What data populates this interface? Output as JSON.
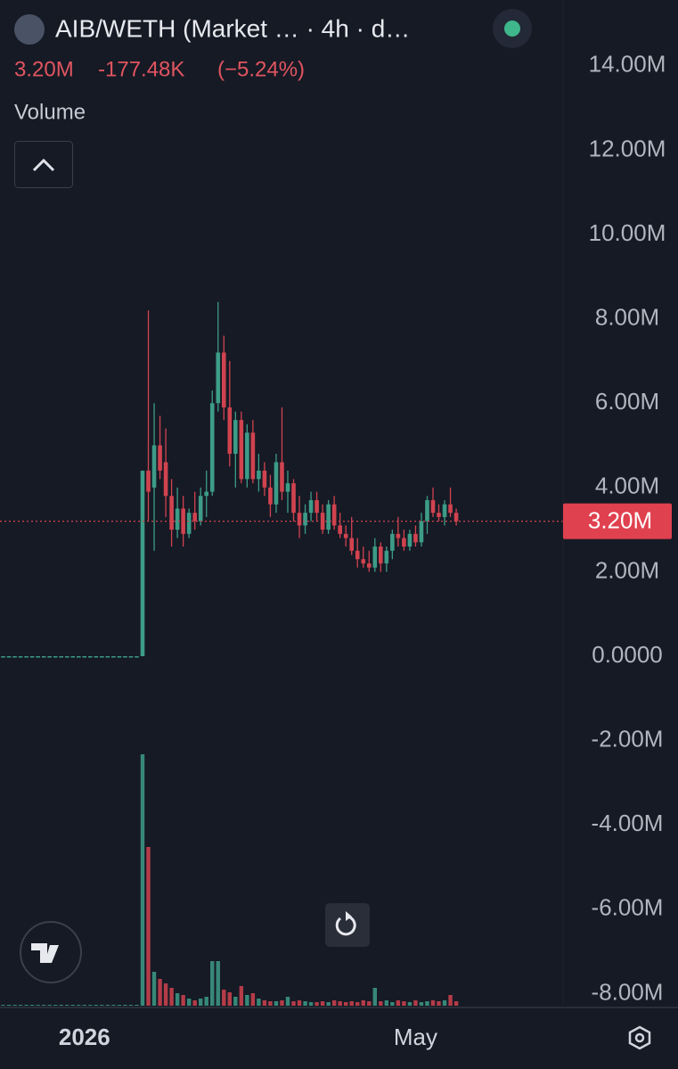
{
  "chart_data": {
    "type": "candlestick",
    "title": "AIB/WETH (Market … · 4h · d…",
    "price_label": "3.20M",
    "change": "-177.48K",
    "change_pct": "(−5.24%)",
    "indicator_label": "Volume",
    "up_color": "#3d9c87",
    "down_color": "#d0434f",
    "categories": [
      null,
      null,
      null,
      null,
      null,
      null,
      null,
      null,
      null,
      null,
      null,
      null,
      null,
      null,
      null,
      "2026",
      null,
      null,
      null,
      null,
      null,
      null,
      null,
      null,
      null,
      null,
      null,
      null,
      null,
      null,
      null,
      null,
      null,
      null,
      null,
      null,
      null,
      null,
      null,
      null,
      null,
      null,
      null,
      null,
      null,
      null,
      null,
      null,
      null,
      null,
      null,
      null,
      null,
      null,
      null,
      null,
      null,
      null,
      null,
      null,
      null,
      null,
      null,
      null,
      null,
      null,
      null,
      null,
      null,
      null,
      null,
      null,
      "May",
      null,
      null,
      null,
      null,
      null,
      null,
      null
    ],
    "open": [
      0,
      0,
      0,
      0,
      0,
      0,
      0,
      0,
      0,
      0,
      0,
      0,
      0,
      0,
      0,
      0,
      0,
      0,
      0,
      0,
      0,
      0,
      0,
      0,
      0,
      0,
      4.4,
      4.0,
      5.0,
      4.6,
      3.8,
      3.0,
      3.5,
      2.9,
      3.4,
      3.2,
      3.8,
      3.9,
      6.0,
      7.2,
      5.9,
      4.8,
      5.6,
      4.2,
      5.3,
      4.2,
      4.4,
      4.0,
      3.6,
      4.6,
      3.9,
      4.1,
      3.4,
      3.1,
      3.4,
      3.7,
      3.4,
      3.0,
      3.6,
      3.1,
      2.9,
      2.8,
      2.5,
      2.3,
      2.2,
      2.1,
      2.6,
      2.2,
      2.5,
      2.9,
      2.8,
      2.6,
      2.9,
      2.7,
      3.2,
      3.7,
      3.4,
      3.3,
      3.6,
      3.4
    ],
    "high": [
      0,
      0,
      0,
      0,
      0,
      0,
      0,
      0,
      0,
      0,
      0,
      0,
      0,
      0,
      0,
      0,
      0,
      0,
      0,
      0,
      0,
      0,
      0,
      0,
      0,
      4.4,
      8.2,
      6.0,
      5.7,
      5.4,
      4.2,
      4.0,
      3.8,
      3.5,
      3.9,
      4.0,
      4.4,
      6.3,
      8.4,
      7.6,
      7.0,
      5.8,
      5.8,
      5.5,
      5.6,
      4.8,
      4.6,
      4.3,
      4.8,
      5.9,
      4.4,
      4.2,
      3.8,
      3.6,
      3.9,
      3.9,
      3.6,
      3.7,
      3.8,
      3.4,
      3.1,
      3.3,
      2.8,
      2.6,
      2.5,
      2.8,
      2.7,
      2.6,
      3.0,
      3.3,
      3.0,
      3.0,
      3.1,
      3.4,
      3.8,
      4.0,
      3.6,
      3.7,
      4.0,
      3.5
    ],
    "low": [
      0,
      0,
      0,
      0,
      0,
      0,
      0,
      0,
      0,
      0,
      0,
      0,
      0,
      0,
      0,
      0,
      0,
      0,
      0,
      0,
      0,
      0,
      0,
      0,
      0,
      0,
      3.2,
      2.5,
      4.2,
      3.3,
      2.6,
      2.8,
      2.6,
      2.8,
      3.0,
      3.1,
      3.3,
      3.8,
      5.8,
      5.6,
      4.5,
      4.0,
      4.1,
      4.0,
      4.1,
      3.9,
      3.8,
      3.3,
      3.4,
      3.7,
      3.4,
      3.2,
      2.8,
      2.9,
      3.2,
      3.2,
      2.9,
      2.9,
      3.0,
      2.8,
      2.6,
      2.4,
      2.1,
      2.1,
      2.0,
      2.0,
      2.0,
      2.0,
      2.3,
      2.6,
      2.5,
      2.5,
      2.6,
      2.6,
      2.9,
      3.3,
      3.2,
      3.1,
      3.3,
      3.1
    ],
    "close": [
      0,
      0,
      0,
      0,
      0,
      0,
      0,
      0,
      0,
      0,
      0,
      0,
      0,
      0,
      0,
      0,
      0,
      0,
      0,
      0,
      0,
      0,
      0,
      0,
      0,
      4.4,
      3.9,
      5.0,
      4.4,
      3.8,
      3.0,
      3.5,
      2.9,
      3.4,
      3.2,
      3.8,
      3.9,
      6.0,
      7.2,
      5.9,
      4.8,
      5.6,
      4.2,
      5.3,
      4.2,
      4.4,
      4.0,
      3.6,
      4.6,
      3.9,
      4.1,
      3.4,
      3.1,
      3.4,
      3.7,
      3.4,
      3.0,
      3.6,
      3.1,
      2.9,
      2.8,
      2.5,
      2.3,
      2.2,
      2.1,
      2.6,
      2.2,
      2.5,
      2.9,
      2.8,
      2.6,
      2.9,
      2.7,
      3.2,
      3.7,
      3.4,
      3.3,
      3.6,
      3.4,
      3.2
    ],
    "volume": [
      1,
      1,
      1,
      1,
      1,
      1,
      1,
      1,
      1,
      1,
      1,
      1,
      1,
      1,
      1,
      1,
      1,
      1,
      1,
      1,
      1,
      1,
      1,
      1,
      1,
      282,
      178,
      38,
      30,
      25,
      20,
      14,
      12,
      8,
      6,
      8,
      10,
      50,
      50,
      18,
      15,
      10,
      22,
      12,
      14,
      8,
      6,
      5,
      5,
      6,
      10,
      5,
      6,
      5,
      4,
      4,
      5,
      4,
      6,
      5,
      4,
      5,
      4,
      6,
      5,
      20,
      5,
      6,
      4,
      6,
      5,
      4,
      6,
      4,
      5,
      6,
      5,
      6,
      12,
      5
    ],
    "ylim": [
      -8.33,
      15.56
    ],
    "yticks": [
      {
        "value": 14,
        "label": "14.00M"
      },
      {
        "value": 12,
        "label": "12.00M"
      },
      {
        "value": 10,
        "label": "10.00M"
      },
      {
        "value": 8,
        "label": "8.00M"
      },
      {
        "value": 6,
        "label": "6.00M"
      },
      {
        "value": 4,
        "label": "4.00M"
      },
      {
        "value": 2,
        "label": "2.00M"
      },
      {
        "value": 0,
        "label": "0.0000"
      },
      {
        "value": -2,
        "label": "-2.00M"
      },
      {
        "value": -4,
        "label": "-4.00M"
      },
      {
        "value": -6,
        "label": "-6.00M"
      },
      {
        "value": -8,
        "label": "-8.00M"
      }
    ],
    "grid": false
  }
}
